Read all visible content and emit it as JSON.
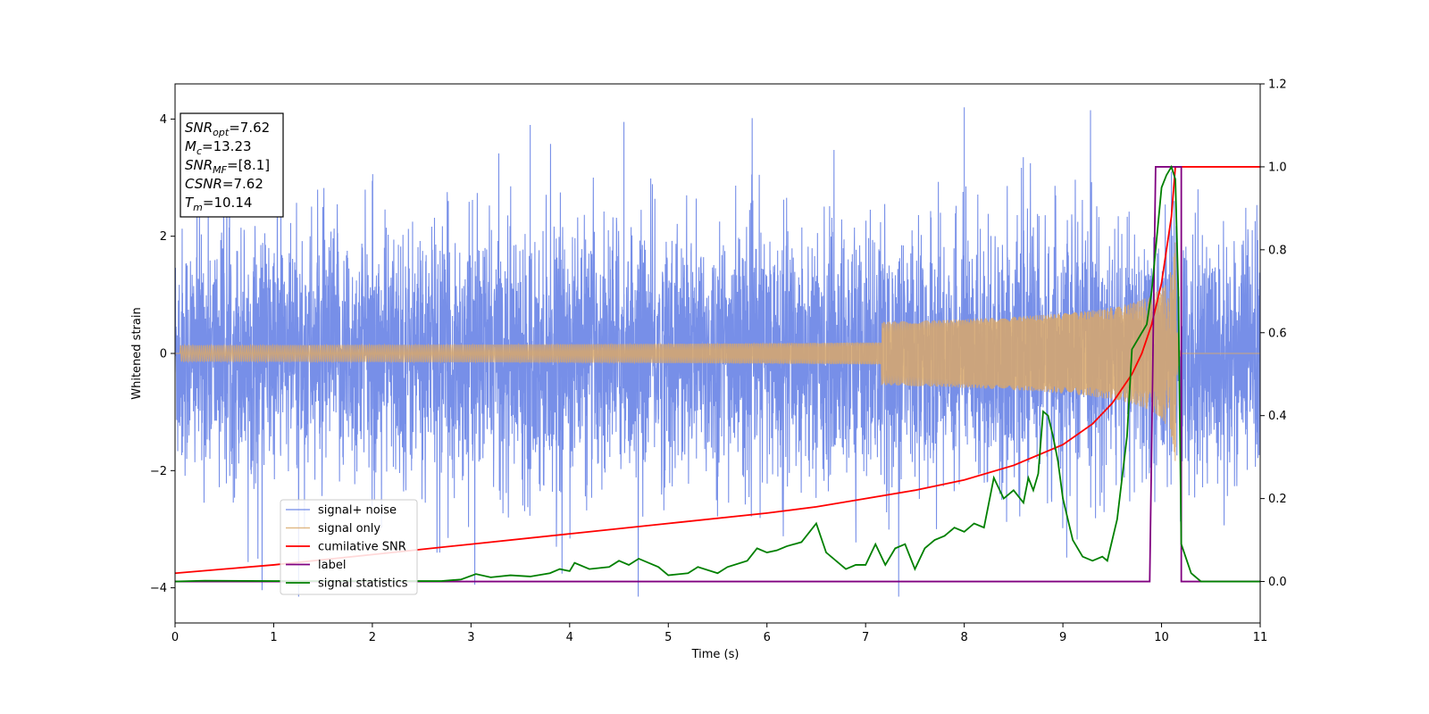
{
  "chart_data": {
    "type": "line",
    "xlabel": "Time (s)",
    "ylabel": "Whitened strain",
    "xlim": [
      0,
      11
    ],
    "ylim": [
      -4.6,
      4.6
    ],
    "y2lim": [
      -0.1,
      1.2
    ],
    "xticks": [
      "0",
      "1",
      "2",
      "3",
      "4",
      "5",
      "6",
      "7",
      "8",
      "9",
      "10",
      "11"
    ],
    "yticks": [
      "−4",
      "−2",
      "0",
      "2",
      "4"
    ],
    "y2ticks": [
      "0.0",
      "0.2",
      "0.4",
      "0.6",
      "0.8",
      "1.0",
      "1.2"
    ],
    "grid": false,
    "legend_position": "lower-left",
    "colors": {
      "noise": "#6b86e6",
      "signal": "#d9a86a",
      "cum_snr": "#ff0000",
      "label": "#800080",
      "stat": "#008000"
    },
    "annotation": {
      "lines": [
        {
          "main": "SNR",
          "sub": "opt",
          "rest": "=7.62"
        },
        {
          "main": "M",
          "sub": "c",
          "rest": "=13.23"
        },
        {
          "main": "SNR",
          "sub": "MF",
          "rest": "=[8.1]"
        },
        {
          "main": "CSNR",
          "sub": "",
          "rest": "=7.62"
        },
        {
          "main": "T",
          "sub": "m",
          "rest": "=10.14"
        }
      ]
    },
    "series": [
      {
        "name": "signal+ noise",
        "axis": "left",
        "description_values": "noise band approx ±1.5 with spikes up to ~4.2",
        "peaks_x": [
          3.6,
          4.55,
          8.0,
          10.1
        ],
        "peaks_y": [
          3.9,
          3.95,
          4.2,
          3.1
        ]
      },
      {
        "name": "signal only",
        "axis": "left",
        "chirp_merger_x": 10.14,
        "chirp_peak_amplitude": 1.9
      },
      {
        "name": "cumilative SNR",
        "axis": "right",
        "x": [
          0,
          1,
          2,
          3,
          4,
          5,
          6,
          6.5,
          7,
          7.5,
          8,
          8.5,
          9,
          9.3,
          9.5,
          9.7,
          9.8,
          9.9,
          10.0,
          10.05,
          10.1,
          10.14,
          10.2,
          11
        ],
        "y": [
          0.02,
          0.04,
          0.065,
          0.09,
          0.115,
          0.14,
          0.165,
          0.18,
          0.2,
          0.22,
          0.245,
          0.28,
          0.33,
          0.38,
          0.43,
          0.5,
          0.55,
          0.62,
          0.72,
          0.8,
          0.88,
          1.0,
          1.0,
          1.0
        ]
      },
      {
        "name": "label",
        "axis": "right",
        "x": [
          0,
          9.88,
          9.94,
          10.2,
          10.2,
          11
        ],
        "y": [
          0,
          0,
          1,
          1,
          0,
          0
        ]
      },
      {
        "name": "signal statistics",
        "axis": "right",
        "x": [
          0,
          0.3,
          1,
          2,
          2.7,
          2.9,
          3.05,
          3.2,
          3.4,
          3.6,
          3.8,
          3.9,
          4.0,
          4.05,
          4.2,
          4.4,
          4.5,
          4.6,
          4.7,
          4.9,
          5.0,
          5.2,
          5.3,
          5.5,
          5.6,
          5.8,
          5.9,
          6.0,
          6.1,
          6.2,
          6.35,
          6.5,
          6.6,
          6.8,
          6.9,
          7.0,
          7.1,
          7.2,
          7.3,
          7.4,
          7.5,
          7.6,
          7.7,
          7.8,
          7.9,
          8.0,
          8.1,
          8.2,
          8.3,
          8.4,
          8.45,
          8.5,
          8.6,
          8.65,
          8.7,
          8.75,
          8.8,
          8.85,
          8.9,
          8.95,
          9.0,
          9.1,
          9.2,
          9.3,
          9.4,
          9.45,
          9.55,
          9.65,
          9.7,
          9.75,
          9.8,
          9.85,
          9.9,
          10.0,
          10.05,
          10.1,
          10.14,
          10.17,
          10.2,
          10.3,
          10.4,
          11
        ],
        "y": [
          0.0,
          0.002,
          0.001,
          0.001,
          0.001,
          0.005,
          0.018,
          0.01,
          0.015,
          0.012,
          0.02,
          0.03,
          0.025,
          0.045,
          0.03,
          0.035,
          0.05,
          0.04,
          0.055,
          0.035,
          0.015,
          0.02,
          0.035,
          0.02,
          0.035,
          0.05,
          0.08,
          0.07,
          0.075,
          0.085,
          0.095,
          0.14,
          0.07,
          0.03,
          0.04,
          0.04,
          0.09,
          0.04,
          0.08,
          0.09,
          0.03,
          0.08,
          0.1,
          0.11,
          0.13,
          0.12,
          0.14,
          0.13,
          0.25,
          0.2,
          0.21,
          0.22,
          0.19,
          0.25,
          0.22,
          0.26,
          0.41,
          0.4,
          0.35,
          0.29,
          0.2,
          0.1,
          0.06,
          0.05,
          0.06,
          0.05,
          0.15,
          0.35,
          0.56,
          0.58,
          0.6,
          0.62,
          0.7,
          0.95,
          0.98,
          1.0,
          0.97,
          0.7,
          0.09,
          0.02,
          0.0,
          0.0
        ]
      }
    ],
    "legend": [
      "signal+ noise",
      "signal only",
      "cumilative SNR",
      "label",
      "signal statistics"
    ]
  }
}
